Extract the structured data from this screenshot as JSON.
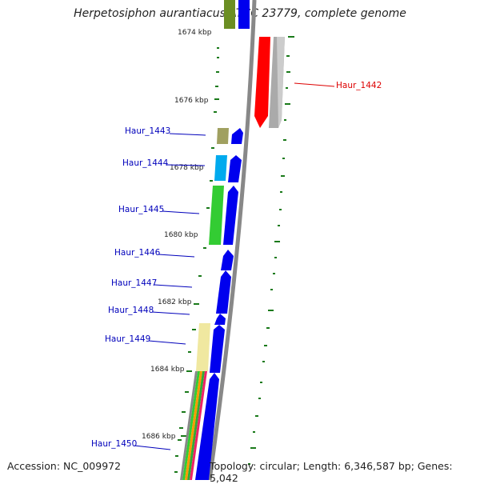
{
  "title": "Herpetosiphon aurantiacus ATCC 23779, complete genome",
  "footer": {
    "accession": "Accession: NC_009972",
    "topology": "Topology: circular; Length: 6,346,587 bp; Genes: 5,042"
  },
  "ruler": {
    "ticks": [
      "1674 kbp",
      "1676 kbp",
      "1678 kbp",
      "1680 kbp",
      "1682 kbp",
      "1684 kbp",
      "1686 kbp"
    ]
  },
  "genes": [
    {
      "name": "Haur_1442",
      "strand": "reverse",
      "color": "#ff0000"
    },
    {
      "name": "Haur_1443",
      "strand": "forward",
      "color": "#0000ee"
    },
    {
      "name": "Haur_1444",
      "strand": "forward",
      "color": "#0000ee"
    },
    {
      "name": "Haur_1445",
      "strand": "forward",
      "color": "#0000ee"
    },
    {
      "name": "Haur_1446",
      "strand": "forward",
      "color": "#0000ee"
    },
    {
      "name": "Haur_1447",
      "strand": "forward",
      "color": "#0000ee"
    },
    {
      "name": "Haur_1448",
      "strand": "forward",
      "color": "#0000ee"
    },
    {
      "name": "Haur_1449",
      "strand": "forward",
      "color": "#0000ee"
    },
    {
      "name": "Haur_1450",
      "strand": "forward",
      "color": "#0000ee"
    }
  ],
  "colors": {
    "forward_label": "#0000bb",
    "reverse_label": "#dd0000",
    "backbone": "#888888",
    "tick_dash": "#1a7a1a"
  }
}
